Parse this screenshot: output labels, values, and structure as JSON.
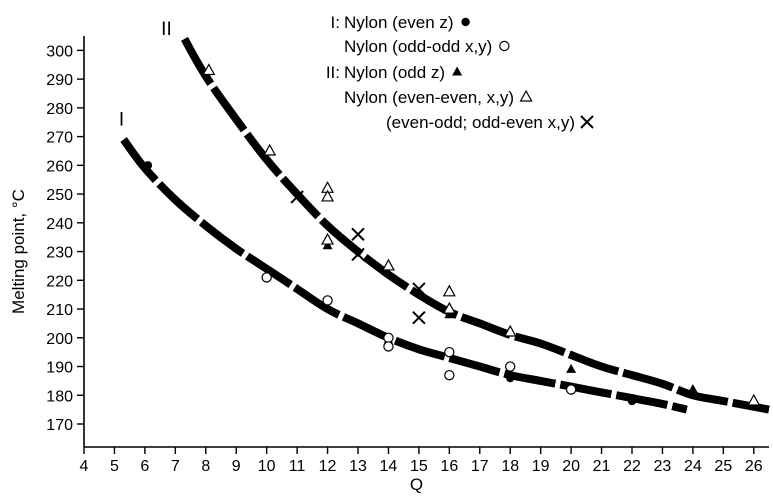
{
  "chart_data": {
    "type": "scatter",
    "title": "",
    "xlabel": "Q",
    "ylabel": "Melting point, °C",
    "xlim": [
      4,
      26.5
    ],
    "ylim": [
      162,
      305
    ],
    "x_ticks": [
      4,
      5,
      6,
      7,
      8,
      9,
      10,
      11,
      12,
      13,
      14,
      15,
      16,
      17,
      18,
      19,
      20,
      21,
      22,
      23,
      24,
      25,
      26
    ],
    "y_ticks": [
      170,
      180,
      190,
      200,
      210,
      220,
      230,
      240,
      250,
      260,
      270,
      280,
      290,
      300
    ],
    "grid": false,
    "legend_position": "top-center",
    "legend": [
      {
        "prefix": "I:",
        "text": "Nylon (even z)",
        "marker": "dot"
      },
      {
        "prefix": "",
        "text": "Nylon (odd-odd x,y)",
        "marker": "circle"
      },
      {
        "prefix": "II:",
        "text": "Nylon (odd z)",
        "marker": "triangle-filled"
      },
      {
        "prefix": "",
        "text": "Nylon (even-even, x,y)",
        "marker": "triangle-open"
      },
      {
        "prefix": "",
        "text": "(even-odd; odd-even x,y)",
        "marker": "cross"
      }
    ],
    "curve_labels": [
      {
        "label": "I",
        "curve": "I"
      },
      {
        "label": "II",
        "curve": "II"
      }
    ],
    "curves": [
      {
        "name": "I",
        "style": "thick-dashed",
        "x": [
          5.3,
          6,
          7,
          8,
          9,
          10,
          11,
          12,
          13,
          14,
          15,
          16,
          17,
          18,
          19,
          20,
          21,
          22,
          23,
          23.8
        ],
        "y": [
          269,
          259,
          248,
          239,
          231,
          224,
          217,
          210,
          205,
          200,
          196,
          193,
          190,
          187,
          185,
          183,
          181,
          179,
          177,
          175
        ]
      },
      {
        "name": "II",
        "style": "thick-dashed",
        "x": [
          7.3,
          8,
          9,
          10,
          11,
          12,
          13,
          14,
          15,
          16,
          17,
          18,
          19,
          20,
          21,
          22,
          23,
          24,
          25,
          26.5
        ],
        "y": [
          304,
          291,
          276,
          262,
          250,
          239,
          230,
          222,
          215,
          209,
          205,
          201,
          198,
          194,
          190,
          187,
          184,
          180,
          178,
          175
        ]
      }
    ],
    "series": [
      {
        "marker": "dot",
        "x": [
          6.1,
          10.1,
          14,
          18,
          22
        ],
        "y": [
          260,
          223,
          198,
          186,
          178
        ]
      },
      {
        "marker": "circle",
        "x": [
          10,
          12,
          14,
          14,
          16,
          16,
          18,
          20
        ],
        "y": [
          221,
          213,
          200,
          197,
          195,
          187,
          190,
          182
        ]
      },
      {
        "marker": "triangle-filled",
        "x": [
          12,
          16,
          20,
          24
        ],
        "y": [
          232,
          208,
          189,
          182
        ]
      },
      {
        "marker": "triangle-open",
        "x": [
          8.1,
          10.1,
          12,
          12,
          12,
          14,
          16,
          16,
          18,
          26
        ],
        "y": [
          293,
          265,
          252,
          249,
          234,
          225,
          216,
          210,
          202,
          178
        ]
      },
      {
        "marker": "cross",
        "x": [
          11,
          13,
          13,
          15,
          15
        ],
        "y": [
          249,
          236,
          229,
          217,
          207
        ]
      }
    ]
  }
}
